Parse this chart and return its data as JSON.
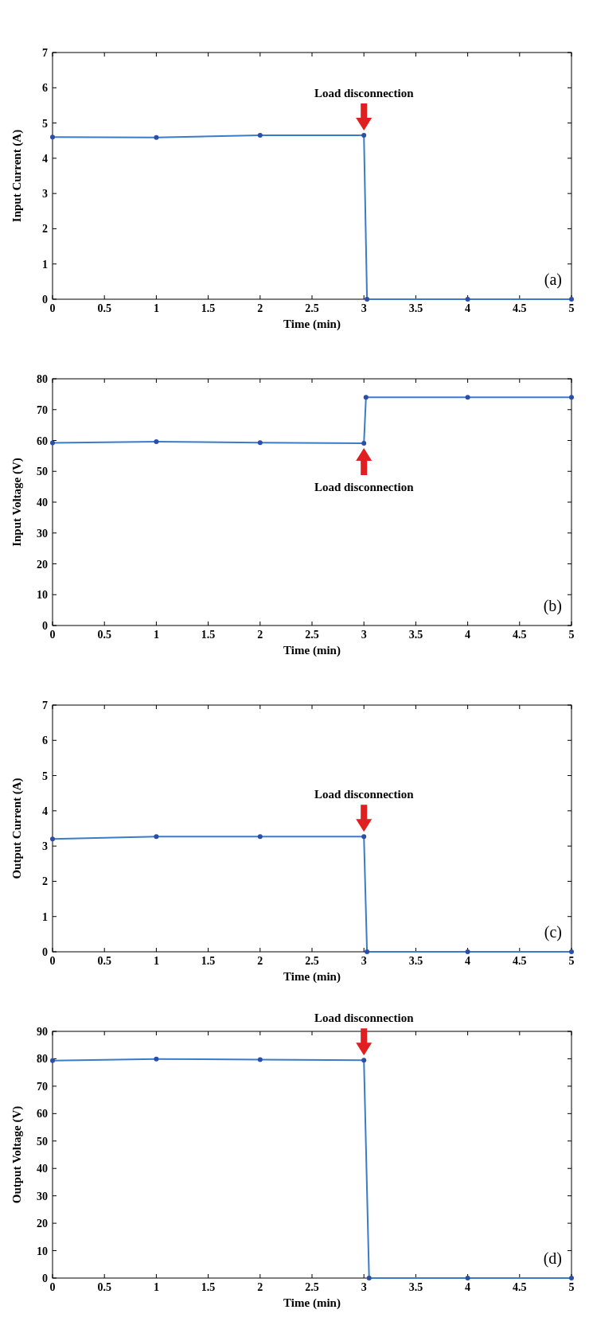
{
  "chart_data": [
    {
      "type": "line",
      "xlabel": "Time (min)",
      "ylabel": "Input Current (A)",
      "x": [
        0,
        1,
        2,
        3,
        3.03,
        4,
        5
      ],
      "series": [
        {
          "color": "#3a7cc8",
          "values": [
            4.6,
            4.59,
            4.65,
            4.65,
            0,
            0,
            0
          ]
        }
      ],
      "xlim": [
        0,
        5
      ],
      "xticks": [
        0,
        0.5,
        1,
        1.5,
        2,
        2.5,
        3,
        3.5,
        4,
        4.5,
        5
      ],
      "ylim": [
        0,
        7
      ],
      "yticks": [
        0,
        1,
        2,
        3,
        4,
        5,
        6,
        7
      ],
      "marker": "circle",
      "grid": false,
      "annotations": [
        "Load disconnection",
        "(a)"
      ]
    },
    {
      "type": "line",
      "xlabel": "Time (min)",
      "ylabel": "Input Voltage (V)",
      "x": [
        0,
        1,
        2,
        3,
        3.02,
        4,
        5
      ],
      "series": [
        {
          "color": "#3a7cc8",
          "values": [
            59.2,
            59.6,
            59.3,
            59.1,
            74,
            74,
            74
          ]
        }
      ],
      "xlim": [
        0,
        5
      ],
      "xticks": [
        0,
        0.5,
        1,
        1.5,
        2,
        2.5,
        3,
        3.5,
        4,
        4.5,
        5
      ],
      "ylim": [
        0,
        80
      ],
      "yticks": [
        0,
        10,
        20,
        30,
        40,
        50,
        60,
        70,
        80
      ],
      "marker": "circle",
      "grid": false,
      "annotations": [
        "Load disconnection",
        "(b)"
      ]
    },
    {
      "type": "line",
      "xlabel": "Time (min)",
      "ylabel": "Output Current (A)",
      "x": [
        0,
        1,
        2,
        3,
        3.03,
        4,
        5
      ],
      "series": [
        {
          "color": "#3a7cc8",
          "values": [
            3.2,
            3.27,
            3.27,
            3.27,
            0,
            0,
            0
          ]
        }
      ],
      "xlim": [
        0,
        5
      ],
      "xticks": [
        0,
        0.5,
        1,
        1.5,
        2,
        2.5,
        3,
        3.5,
        4,
        4.5,
        5
      ],
      "ylim": [
        0,
        7
      ],
      "yticks": [
        0,
        1,
        2,
        3,
        4,
        5,
        6,
        7
      ],
      "marker": "circle",
      "grid": false,
      "annotations": [
        "Load disconnection",
        "(c)"
      ]
    },
    {
      "type": "line",
      "xlabel": "Time (min)",
      "ylabel": "Output Voltage (V)",
      "x": [
        0,
        1,
        2,
        3,
        3.05,
        4,
        5
      ],
      "series": [
        {
          "color": "#3a7cc8",
          "values": [
            79.3,
            79.9,
            79.7,
            79.5,
            0,
            0,
            0
          ]
        }
      ],
      "xlim": [
        0,
        5
      ],
      "xticks": [
        0,
        0.5,
        1,
        1.5,
        2,
        2.5,
        3,
        3.5,
        4,
        4.5,
        5
      ],
      "ylim": [
        0,
        90
      ],
      "yticks": [
        0,
        10,
        20,
        30,
        40,
        50,
        60,
        70,
        80,
        90
      ],
      "marker": "circle",
      "grid": false,
      "annotations": [
        "Load disconnection",
        "(d)"
      ]
    }
  ]
}
